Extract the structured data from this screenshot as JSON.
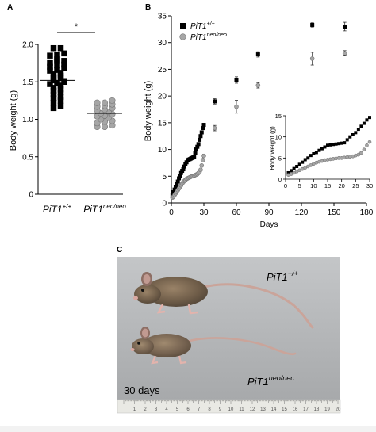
{
  "panels": {
    "a": {
      "letter": "A",
      "chart_data": {
        "type": "scatter",
        "ylabel": "Body weight (g)",
        "ylim": [
          0,
          2.0
        ],
        "yticks": [
          "0",
          "0.5",
          "1.0",
          "1.5",
          "2.0"
        ],
        "categories": [
          "PiT1",
          "PiT1"
        ],
        "category_sup": [
          "+/+",
          "neo/neo"
        ],
        "significance": "*",
        "series": [
          {
            "color": "#000000",
            "marker": "square",
            "mean": 1.52,
            "values": [
              1.95,
              1.95,
              1.88,
              1.86,
              1.85,
              1.8,
              1.78,
              1.78,
              1.75,
              1.73,
              1.72,
              1.7,
              1.68,
              1.66,
              1.65,
              1.62,
              1.6,
              1.58,
              1.56,
              1.55,
              1.52,
              1.5,
              1.48,
              1.47,
              1.45,
              1.42,
              1.4,
              1.38,
              1.36,
              1.33,
              1.3,
              1.28,
              1.25,
              1.22,
              1.18,
              1.15
            ]
          },
          {
            "color": "#a6a6a6",
            "marker": "circle",
            "mean": 1.08,
            "values": [
              1.25,
              1.22,
              1.22,
              1.2,
              1.18,
              1.17,
              1.15,
              1.13,
              1.12,
              1.1,
              1.08,
              1.07,
              1.05,
              1.04,
              1.02,
              1.0,
              0.98,
              0.97,
              0.95,
              0.92,
              0.9,
              0.9
            ]
          }
        ]
      }
    },
    "b": {
      "letter": "B",
      "chart_data": {
        "type": "scatter",
        "xlabel": "Days",
        "ylabel": "Body weight (g)",
        "xlim": [
          0,
          180
        ],
        "ylim": [
          0,
          35
        ],
        "xticks": [
          0,
          30,
          60,
          90,
          120,
          150,
          180
        ],
        "yticks": [
          0,
          5,
          10,
          15,
          20,
          25,
          30,
          35
        ],
        "legend_placement": "top-left",
        "series": [
          {
            "name": "PiT1",
            "name_sup": "+/+",
            "color": "#000000",
            "marker": "square",
            "x": [
              1,
              2,
              3,
              4,
              5,
              6,
              7,
              8,
              9,
              10,
              11,
              12,
              13,
              14,
              15,
              16,
              17,
              18,
              19,
              20,
              21,
              22,
              23,
              24,
              25,
              26,
              27,
              28,
              29,
              30,
              40,
              60,
              80,
              130,
              160
            ],
            "y": [
              1.5,
              2.0,
              2.5,
              3.0,
              3.5,
              4.0,
              4.6,
              5.0,
              5.6,
              6.0,
              6.3,
              6.8,
              7.2,
              7.6,
              8.0,
              8.1,
              8.2,
              8.3,
              8.4,
              8.5,
              8.6,
              9.3,
              10.0,
              10.5,
              11.0,
              11.8,
              12.5,
              13.2,
              14.0,
              14.6,
              19.0,
              23.0,
              27.8,
              33.3,
              33.0
            ],
            "err": [
              0,
              0,
              0,
              0,
              0,
              0,
              0,
              0,
              0,
              0,
              0,
              0,
              0,
              0,
              0,
              0,
              0,
              0,
              0,
              0,
              0,
              0,
              0,
              0,
              0,
              0,
              0,
              0,
              0,
              0.3,
              0.5,
              0.6,
              0.5,
              0.4,
              0.8
            ]
          },
          {
            "name": "PiT1",
            "name_sup": "neo/neo",
            "color": "#a6a6a6",
            "marker": "circle",
            "x": [
              1,
              2,
              3,
              4,
              5,
              6,
              7,
              8,
              9,
              10,
              11,
              12,
              13,
              14,
              15,
              16,
              17,
              18,
              19,
              20,
              21,
              22,
              23,
              24,
              25,
              26,
              27,
              28,
              29,
              30,
              40,
              60,
              80,
              130,
              160
            ],
            "y": [
              1.0,
              1.2,
              1.5,
              1.8,
              2.1,
              2.4,
              2.7,
              3.0,
              3.3,
              3.6,
              3.9,
              4.1,
              4.3,
              4.5,
              4.6,
              4.7,
              4.8,
              4.9,
              5.0,
              5.0,
              5.1,
              5.2,
              5.3,
              5.4,
              5.6,
              5.8,
              6.2,
              7.0,
              8.0,
              8.8,
              14.0,
              18.0,
              22.0,
              27.0,
              28.0
            ],
            "err": [
              0,
              0,
              0,
              0,
              0,
              0,
              0,
              0,
              0,
              0,
              0,
              0,
              0,
              0,
              0,
              0,
              0,
              0,
              0,
              0,
              0,
              0,
              0,
              0,
              0,
              0,
              0,
              0,
              0,
              0.3,
              0.5,
              1.2,
              0.5,
              1.2,
              0.5
            ]
          }
        ]
      },
      "inset": {
        "chart_data": {
          "type": "scatter",
          "ylabel": "Body weight (g)",
          "xlim": [
            0,
            30
          ],
          "ylim": [
            0,
            15
          ],
          "xticks": [
            0,
            5,
            10,
            15,
            20,
            25,
            30
          ],
          "yticks": [
            0,
            5,
            10,
            15
          ],
          "series_ref": "same as panel B, days 0–30"
        }
      }
    },
    "c": {
      "letter": "C",
      "label_top": "PiT1",
      "label_top_sup": "+/+",
      "label_bottom": "PiT1",
      "label_bottom_sup": "neo/neo",
      "age": "30 days",
      "ruler_numbers": [
        "1",
        "2",
        "3",
        "4",
        "5",
        "6",
        "7",
        "8",
        "9",
        "10",
        "11",
        "12",
        "13",
        "14",
        "15",
        "16",
        "17",
        "18",
        "19",
        "20"
      ]
    }
  }
}
